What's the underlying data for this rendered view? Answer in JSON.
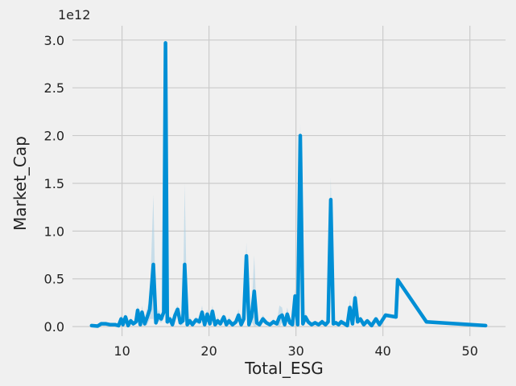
{
  "chart_data": {
    "type": "line",
    "title": "",
    "xlabel": "Total_ESG",
    "ylabel": "Market_Cap",
    "y_offset_label": "1e12",
    "y_scale_factor": 1000000000000.0,
    "xlim": [
      4.3,
      54.1
    ],
    "ylim": [
      -0.1,
      3.15
    ],
    "xticks": [
      10,
      20,
      30,
      40,
      50
    ],
    "xtick_labels": [
      "10",
      "20",
      "30",
      "40",
      "50"
    ],
    "yticks": [
      0.0,
      0.5,
      1.0,
      1.5,
      2.0,
      2.5,
      3.0
    ],
    "ytick_labels": [
      "0.0",
      "0.5",
      "1.0",
      "1.5",
      "2.0",
      "2.5",
      "3.0"
    ],
    "grid": true,
    "legend": "none",
    "colors": {
      "line": "#008fd5",
      "band": "#a6cde3",
      "background": "#f0f0f0",
      "grid": "#cbcbcb"
    },
    "series": [
      {
        "values_unit": "1e12",
        "x": [
          6.5,
          7.2,
          7.6,
          8.1,
          8.6,
          9.2,
          9.6,
          9.9,
          10.1,
          10.4,
          10.7,
          11.0,
          11.3,
          11.6,
          11.8,
          12.1,
          12.3,
          12.6,
          12.9,
          13.2,
          13.6,
          13.9,
          14.2,
          14.5,
          14.8,
          15.0,
          15.2,
          15.5,
          15.8,
          16.1,
          16.4,
          16.7,
          17.0,
          17.2,
          17.5,
          17.8,
          18.1,
          18.5,
          18.9,
          19.2,
          19.5,
          19.8,
          20.1,
          20.4,
          20.7,
          21.0,
          21.3,
          21.7,
          22.0,
          22.3,
          22.7,
          23.1,
          23.4,
          23.7,
          24.0,
          24.3,
          24.6,
          24.9,
          25.2,
          25.5,
          25.8,
          26.2,
          26.6,
          27.0,
          27.4,
          27.8,
          28.1,
          28.4,
          28.7,
          29.0,
          29.3,
          29.6,
          29.9,
          30.2,
          30.5,
          30.8,
          31.1,
          31.4,
          31.8,
          32.2,
          32.6,
          33.0,
          33.4,
          33.7,
          34.0,
          34.3,
          34.6,
          34.9,
          35.2,
          35.6,
          35.9,
          36.2,
          36.5,
          36.8,
          37.1,
          37.4,
          37.8,
          38.2,
          38.7,
          39.2,
          39.6,
          40.3,
          41.5,
          41.7,
          45.0,
          51.8
        ],
        "y": [
          0.01,
          0.005,
          0.03,
          0.03,
          0.02,
          0.02,
          0.01,
          0.08,
          0.02,
          0.1,
          0.01,
          0.06,
          0.03,
          0.05,
          0.17,
          0.02,
          0.15,
          0.03,
          0.1,
          0.18,
          0.65,
          0.04,
          0.12,
          0.08,
          0.15,
          2.97,
          0.05,
          0.08,
          0.02,
          0.12,
          0.18,
          0.04,
          0.06,
          0.65,
          0.02,
          0.06,
          0.02,
          0.07,
          0.05,
          0.15,
          0.02,
          0.13,
          0.03,
          0.16,
          0.02,
          0.06,
          0.03,
          0.1,
          0.02,
          0.06,
          0.02,
          0.05,
          0.12,
          0.02,
          0.08,
          0.74,
          0.02,
          0.1,
          0.37,
          0.04,
          0.02,
          0.08,
          0.04,
          0.02,
          0.05,
          0.03,
          0.1,
          0.12,
          0.02,
          0.13,
          0.04,
          0.02,
          0.32,
          0.02,
          2.0,
          0.03,
          0.1,
          0.05,
          0.02,
          0.04,
          0.02,
          0.05,
          0.02,
          0.05,
          1.33,
          0.03,
          0.04,
          0.02,
          0.05,
          0.03,
          0.01,
          0.2,
          0.03,
          0.3,
          0.05,
          0.08,
          0.02,
          0.06,
          0.01,
          0.08,
          0.02,
          0.12,
          0.1,
          0.49,
          0.05,
          0.01
        ],
        "band_upper": [
          0.02,
          0.01,
          0.05,
          0.04,
          0.03,
          0.03,
          0.02,
          0.12,
          0.04,
          0.14,
          0.02,
          0.09,
          0.05,
          0.08,
          0.22,
          0.04,
          0.22,
          0.06,
          0.2,
          0.28,
          1.38,
          0.07,
          0.18,
          0.12,
          0.22,
          2.97,
          0.08,
          0.12,
          0.04,
          0.18,
          0.22,
          0.07,
          0.1,
          1.5,
          0.04,
          0.1,
          0.04,
          0.1,
          0.08,
          0.22,
          0.04,
          0.18,
          0.05,
          0.22,
          0.04,
          0.1,
          0.05,
          0.14,
          0.04,
          0.1,
          0.04,
          0.08,
          0.18,
          0.04,
          0.12,
          0.88,
          0.04,
          0.15,
          0.75,
          0.07,
          0.04,
          0.12,
          0.06,
          0.04,
          0.08,
          0.05,
          0.22,
          0.2,
          0.04,
          0.2,
          0.07,
          0.04,
          0.4,
          0.04,
          2.13,
          0.05,
          0.14,
          0.08,
          0.04,
          0.06,
          0.04,
          0.08,
          0.04,
          0.08,
          1.56,
          0.05,
          0.06,
          0.04,
          0.08,
          0.05,
          0.02,
          0.28,
          0.05,
          0.38,
          0.07,
          0.1,
          0.04,
          0.08,
          0.02,
          0.1,
          0.04,
          0.14,
          0.12,
          0.49,
          0.05,
          0.01
        ],
        "band_lower": [
          0.0,
          0.0,
          0.01,
          0.02,
          0.01,
          0.01,
          0.0,
          0.04,
          0.0,
          0.06,
          0.0,
          0.03,
          0.01,
          0.02,
          0.12,
          0.0,
          0.08,
          0.0,
          0.02,
          0.08,
          0.08,
          0.01,
          0.06,
          0.04,
          0.08,
          2.97,
          0.02,
          0.04,
          0.0,
          0.06,
          0.14,
          0.01,
          0.02,
          0.08,
          0.0,
          0.02,
          0.0,
          0.04,
          0.02,
          0.08,
          0.0,
          0.08,
          0.01,
          0.1,
          0.0,
          0.02,
          0.01,
          0.06,
          0.0,
          0.02,
          0.0,
          0.02,
          0.06,
          0.0,
          0.04,
          0.6,
          0.0,
          0.05,
          0.0,
          0.01,
          0.0,
          0.04,
          0.02,
          0.0,
          0.02,
          0.01,
          0.0,
          0.04,
          0.0,
          0.06,
          0.01,
          0.0,
          0.24,
          0.0,
          1.87,
          0.01,
          0.06,
          0.02,
          0.0,
          0.02,
          0.0,
          0.02,
          0.0,
          0.02,
          1.1,
          0.01,
          0.02,
          0.0,
          0.02,
          0.01,
          0.0,
          0.12,
          0.01,
          0.22,
          0.03,
          0.06,
          0.0,
          0.04,
          0.0,
          0.06,
          0.0,
          0.1,
          0.08,
          0.49,
          0.05,
          0.01
        ]
      }
    ]
  }
}
